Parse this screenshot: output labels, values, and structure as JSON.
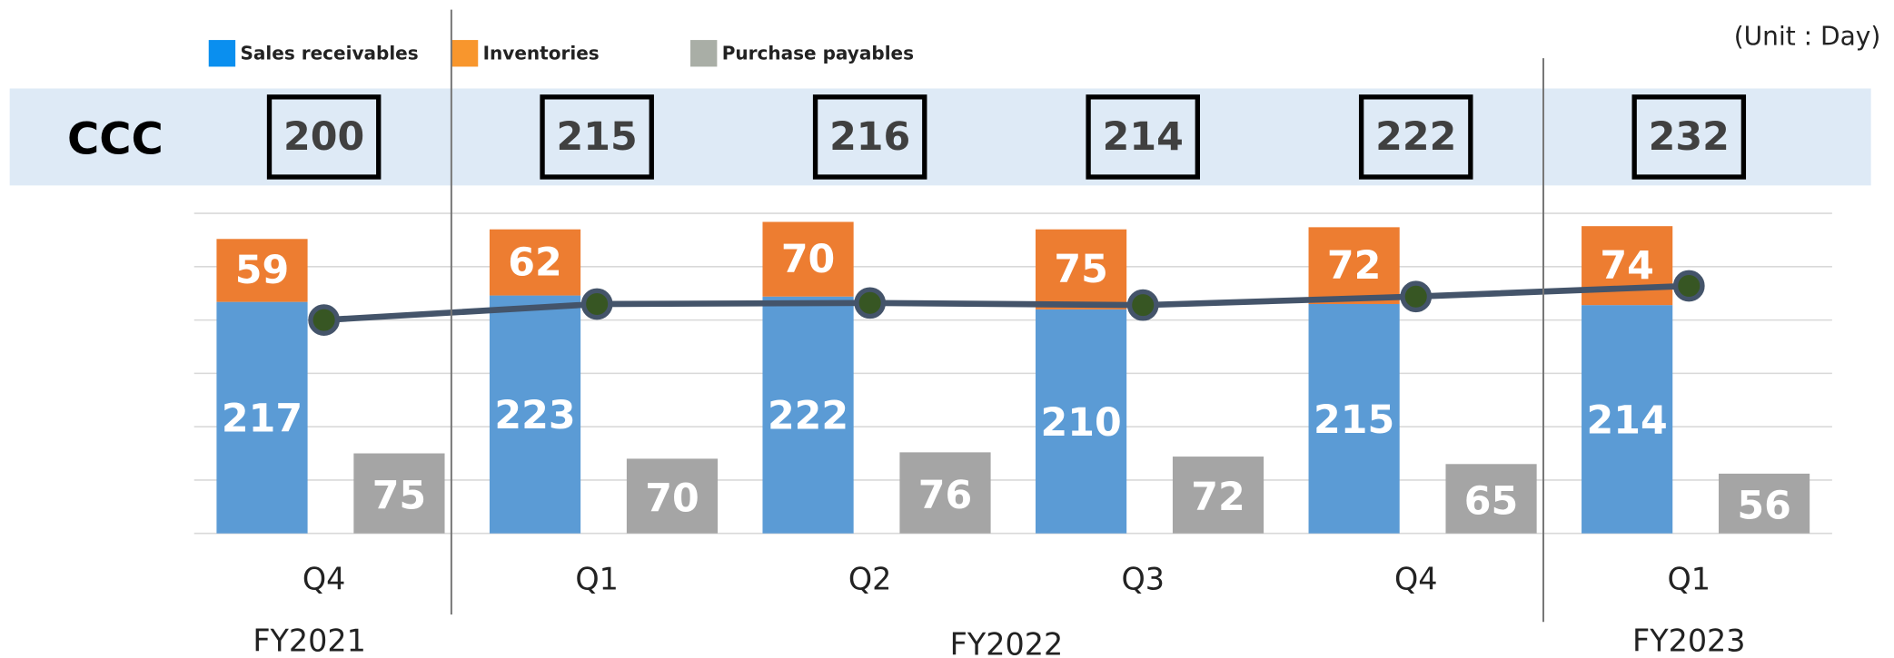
{
  "chart_data": {
    "type": "bar",
    "unit_note": "(Unit : Day)",
    "categories": [
      "Q4",
      "Q1",
      "Q2",
      "Q3",
      "Q4",
      "Q1"
    ],
    "groups": [
      {
        "name": "FY2021",
        "count": 1
      },
      {
        "name": "FY2022",
        "count": 4
      },
      {
        "name": "FY2023",
        "count": 1
      }
    ],
    "series": [
      {
        "name": "Sales receivables",
        "color": "#5b9bd5",
        "legend_color": "#0a8fef",
        "stack": "a",
        "values": [
          217,
          223,
          222,
          210,
          215,
          214
        ]
      },
      {
        "name": "Inventories",
        "color": "#ed7d31",
        "legend_color": "#f8962d",
        "stack": "a",
        "values": [
          59,
          62,
          70,
          75,
          72,
          74
        ]
      },
      {
        "name": "Purchase payables",
        "color": "#a5a5a5",
        "legend_color": "#a9aea6",
        "stack": "b",
        "values": [
          75,
          70,
          76,
          72,
          65,
          56
        ]
      }
    ],
    "ccc": {
      "name": "CCC",
      "color": "#44546a",
      "marker_color": "#375623",
      "values": [
        200,
        215,
        216,
        214,
        222,
        232
      ]
    },
    "ylim": [
      0,
      300
    ],
    "yticks": [
      0,
      50,
      100,
      150,
      200,
      250,
      300
    ],
    "grid": true
  }
}
